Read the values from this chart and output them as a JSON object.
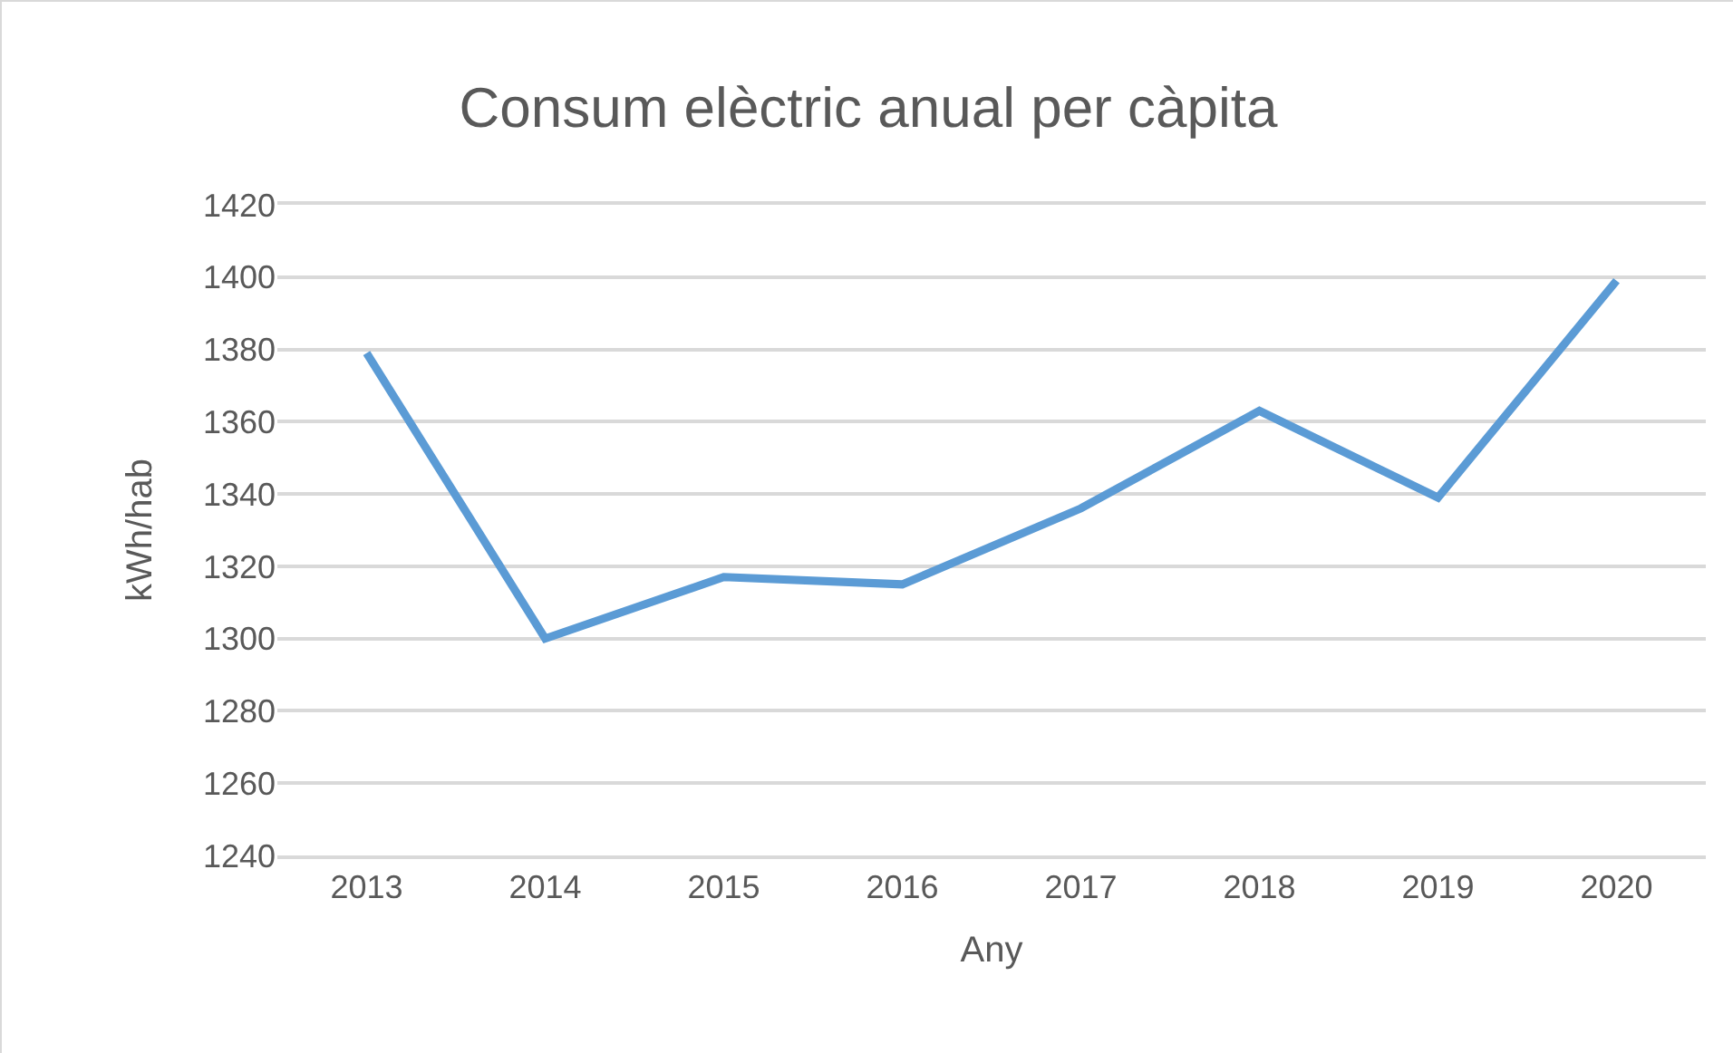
{
  "chart_data": {
    "type": "line",
    "title": "Consum elèctric anual per càpita",
    "xlabel": "Any",
    "ylabel": "kWh/hab",
    "categories": [
      "2013",
      "2014",
      "2015",
      "2016",
      "2017",
      "2018",
      "2019",
      "2020"
    ],
    "series": [
      {
        "color": "#5b9bd5",
        "values": [
          1379,
          1300,
          1317,
          1315,
          1336,
          1363,
          1339,
          1399
        ]
      }
    ],
    "ylim": [
      1240,
      1420
    ],
    "yticks": [
      1240,
      1260,
      1280,
      1300,
      1320,
      1340,
      1360,
      1380,
      1400,
      1420
    ],
    "grid": "y",
    "marker": "none",
    "line_style": "solid"
  }
}
